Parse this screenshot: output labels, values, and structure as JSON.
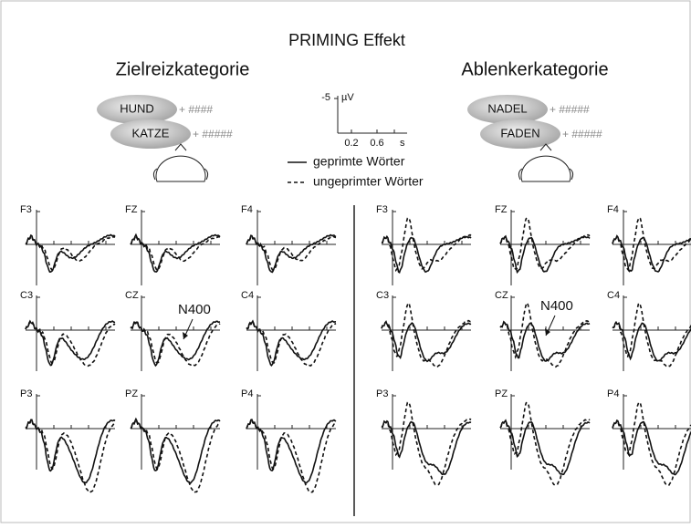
{
  "title": "PRIMING Effekt",
  "panels": [
    {
      "heading": "Zielreizkategorie",
      "stimuli": [
        {
          "word": "HUND",
          "mask": "+ ####"
        },
        {
          "word": "KATZE",
          "mask": "+ #####"
        }
      ],
      "electrodes": [
        "F3",
        "FZ",
        "F4",
        "C3",
        "CZ",
        "C4",
        "P3",
        "PZ",
        "P4"
      ],
      "annotation": "N400"
    },
    {
      "heading": "Ablenkerkategorie",
      "stimuli": [
        {
          "word": "NADEL",
          "mask": "+ #####"
        },
        {
          "word": "FADEN",
          "mask": "+ #####"
        }
      ],
      "electrodes": [
        "F3",
        "FZ",
        "F4",
        "C3",
        "CZ",
        "C4",
        "P3",
        "PZ",
        "P4"
      ],
      "annotation": "N400"
    }
  ],
  "scale": {
    "y_label": "-5",
    "y_unit": "µV",
    "x_ticks": [
      "0.2",
      "0.6"
    ],
    "x_unit": "s"
  },
  "legend": [
    "geprimte Wörter",
    "ungeprimter Wörter"
  ]
}
